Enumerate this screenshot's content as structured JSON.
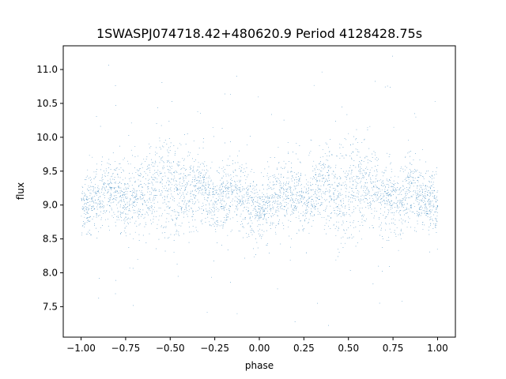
{
  "chart_data": {
    "type": "scatter",
    "title": "1SWASPJ074718.42+480620.9 Period 4128428.75s",
    "xlabel": "phase",
    "ylabel": "flux",
    "xlim": [
      -1.1,
      1.1
    ],
    "ylim": [
      7.05,
      11.35
    ],
    "xticks": [
      -1.0,
      -0.75,
      -0.5,
      -0.25,
      0.0,
      0.25,
      0.5,
      0.75,
      1.0
    ],
    "xtick_labels": [
      "−1.00",
      "−0.75",
      "−0.50",
      "−0.25",
      "0.00",
      "0.25",
      "0.50",
      "0.75",
      "1.00"
    ],
    "yticks": [
      7.5,
      8.0,
      8.5,
      9.0,
      9.5,
      10.0,
      10.5,
      11.0
    ],
    "ytick_labels": [
      "7.5",
      "8.0",
      "8.5",
      "9.0",
      "9.5",
      "10.0",
      "10.5",
      "11.0"
    ],
    "grid": false,
    "marker_color": "#1f77b4",
    "series": [
      {
        "x_range": [
          -1.0,
          1.0
        ],
        "baseline_flux": 9.05,
        "flux_range": [
          7.2,
          11.2
        ],
        "symmetric_about_phase": 0.0,
        "profile": [
          {
            "phase": 0.0,
            "flux": 8.95
          },
          {
            "phase": 0.05,
            "flux": 9.0
          },
          {
            "phase": 0.1,
            "flux": 9.1
          },
          {
            "phase": 0.15,
            "flux": 9.2
          },
          {
            "phase": 0.2,
            "flux": 9.15
          },
          {
            "phase": 0.25,
            "flux": 9.0
          },
          {
            "phase": 0.3,
            "flux": 9.2
          },
          {
            "phase": 0.35,
            "flux": 9.3
          },
          {
            "phase": 0.4,
            "flux": 9.2
          },
          {
            "phase": 0.45,
            "flux": 9.1
          },
          {
            "phase": 0.5,
            "flux": 9.25
          },
          {
            "phase": 0.55,
            "flux": 9.35
          },
          {
            "phase": 0.6,
            "flux": 9.3
          },
          {
            "phase": 0.65,
            "flux": 9.2
          },
          {
            "phase": 0.7,
            "flux": 9.1
          },
          {
            "phase": 0.75,
            "flux": 9.05
          },
          {
            "phase": 0.8,
            "flux": 9.15
          },
          {
            "phase": 0.85,
            "flux": 9.2
          },
          {
            "phase": 0.9,
            "flux": 9.1
          },
          {
            "phase": 0.95,
            "flux": 9.05
          },
          {
            "phase": 1.0,
            "flux": 8.95
          }
        ],
        "scatter_spread": [
          {
            "phase": 0.0,
            "spread": 0.45
          },
          {
            "phase": 0.1,
            "spread": 0.6
          },
          {
            "phase": 0.2,
            "spread": 0.5
          },
          {
            "phase": 0.3,
            "spread": 0.5
          },
          {
            "phase": 0.4,
            "spread": 0.7
          },
          {
            "phase": 0.5,
            "spread": 0.8
          },
          {
            "phase": 0.6,
            "spread": 0.75
          },
          {
            "phase": 0.7,
            "spread": 0.6
          },
          {
            "phase": 0.8,
            "spread": 0.55
          },
          {
            "phase": 0.9,
            "spread": 0.5
          },
          {
            "phase": 1.0,
            "spread": 0.45
          }
        ]
      }
    ]
  }
}
